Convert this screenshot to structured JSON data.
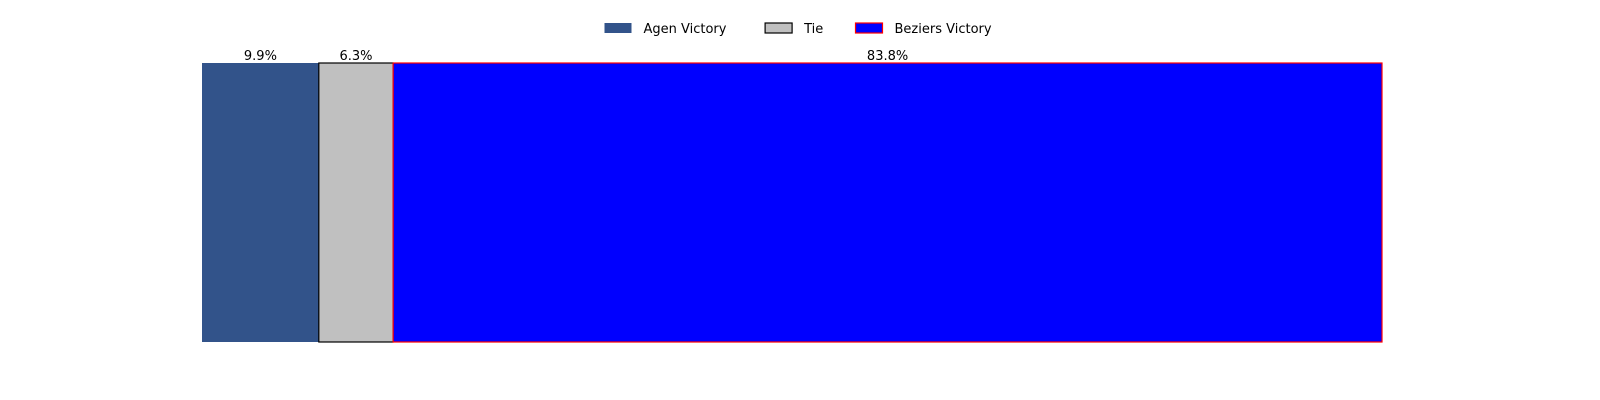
{
  "chart_data": {
    "type": "bar",
    "orientation": "horizontal-stacked",
    "title": "",
    "xlabel": "",
    "ylabel": "",
    "axes_visible": false,
    "grid": false,
    "legend_position": "top-center",
    "xlim": [
      0,
      100
    ],
    "series": [
      {
        "name": "Agen Victory",
        "value": 9.9,
        "label": "9.9%",
        "fill": "#32538a",
        "stroke": "none"
      },
      {
        "name": "Tie",
        "value": 6.3,
        "label": "6.3%",
        "fill": "#c0c0c0",
        "stroke": "#000000"
      },
      {
        "name": "Beziers Victory",
        "value": 83.8,
        "label": "83.8%",
        "fill": "#0000ff",
        "stroke": "#ff0000"
      }
    ]
  }
}
